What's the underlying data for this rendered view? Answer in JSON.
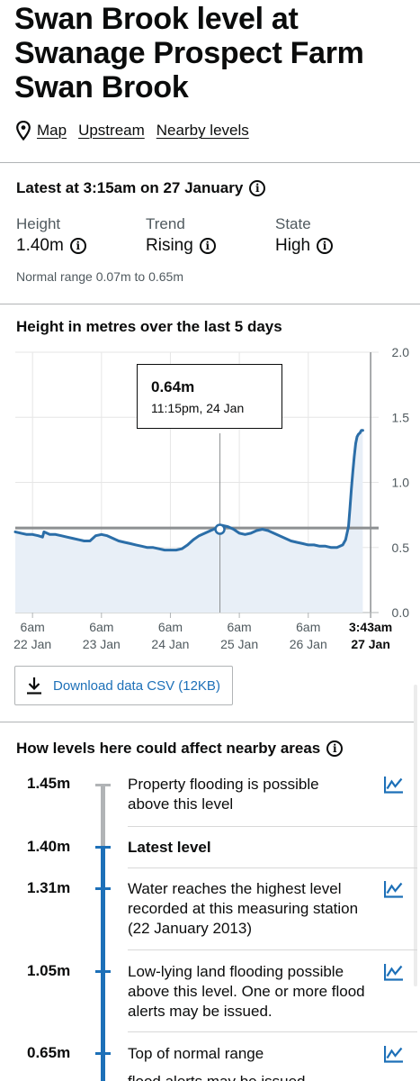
{
  "page": {
    "title_lines": [
      "Swan Brook level at",
      "Swanage Prospect Farm",
      "Swan Brook"
    ]
  },
  "links": {
    "map": "Map",
    "upstream": "Upstream",
    "nearby": "Nearby levels"
  },
  "latest": {
    "heading": "Latest at 3:15am on 27 January",
    "height": {
      "label": "Height",
      "value": "1.40m"
    },
    "trend": {
      "label": "Trend",
      "value": "Rising"
    },
    "state": {
      "label": "State",
      "value": "High"
    },
    "normal_range": "Normal range 0.07m to 0.65m"
  },
  "chart_section": {
    "heading": "Height in metres over the last 5 days",
    "download_label": "Download data CSV (12KB)"
  },
  "chart_data": {
    "type": "area",
    "title": "Height in metres over the last 5 days",
    "xlabel": "",
    "ylabel": "",
    "ylim": [
      0,
      2.0
    ],
    "yticks": [
      "0.0",
      "0.5",
      "1.0",
      "1.5",
      "2.0"
    ],
    "xticks": [
      {
        "time": "6am",
        "date": "22 Jan",
        "hours": 6
      },
      {
        "time": "6am",
        "date": "23 Jan",
        "hours": 30
      },
      {
        "time": "6am",
        "date": "24 Jan",
        "hours": 54
      },
      {
        "time": "6am",
        "date": "25 Jan",
        "hours": 78
      },
      {
        "time": "6am",
        "date": "26 Jan",
        "hours": 102
      },
      {
        "time": "3:43am",
        "date": "27 Jan",
        "hours": 123.72,
        "now": true
      }
    ],
    "x_start_hours": 6,
    "x_end_hours": 126.5,
    "reference_line": {
      "value": 0.65
    },
    "tooltip": {
      "value": "0.64m",
      "time": "11:15pm, 24 Jan",
      "hours": 71.25,
      "y": 0.64
    },
    "grid": true,
    "series": [
      {
        "x_hours": [
          0,
          2,
          4,
          6,
          8,
          9.5,
          10,
          12,
          14,
          16,
          18,
          20,
          22,
          24,
          26,
          28,
          30,
          32,
          34,
          36,
          38,
          40,
          42,
          44,
          46,
          48,
          50,
          52,
          54,
          56,
          58,
          60,
          62,
          64,
          66,
          68,
          70,
          71.25,
          72,
          74,
          76,
          78,
          80,
          82,
          84,
          86,
          88,
          90,
          92,
          94,
          96,
          98,
          100,
          102,
          104,
          106,
          108,
          110,
          112,
          114,
          115,
          116,
          116.5,
          117,
          117.5,
          118,
          118.5,
          119,
          119.5,
          120,
          120.5,
          121
        ],
        "values": [
          0.62,
          0.61,
          0.6,
          0.6,
          0.59,
          0.58,
          0.62,
          0.6,
          0.6,
          0.59,
          0.58,
          0.57,
          0.56,
          0.55,
          0.55,
          0.59,
          0.6,
          0.59,
          0.57,
          0.55,
          0.54,
          0.53,
          0.52,
          0.51,
          0.5,
          0.5,
          0.49,
          0.48,
          0.48,
          0.48,
          0.49,
          0.52,
          0.56,
          0.59,
          0.61,
          0.63,
          0.65,
          0.64,
          0.67,
          0.66,
          0.64,
          0.61,
          0.6,
          0.61,
          0.63,
          0.64,
          0.63,
          0.61,
          0.59,
          0.57,
          0.55,
          0.54,
          0.53,
          0.52,
          0.52,
          0.51,
          0.51,
          0.5,
          0.5,
          0.52,
          0.56,
          0.66,
          0.8,
          0.95,
          1.08,
          1.2,
          1.3,
          1.35,
          1.37,
          1.38,
          1.4,
          1.4
        ]
      }
    ]
  },
  "impact": {
    "heading": "How levels here could affect nearby areas",
    "rows": [
      {
        "level": "1.45m",
        "text": "Property flooding is possible above this level"
      },
      {
        "level": "1.40m",
        "text": "Latest level"
      },
      {
        "level": "1.31m",
        "text": "Water reaches the highest level recorded at this measuring station (22 January 2013)"
      },
      {
        "level": "1.05m",
        "text": "Low-lying land flooding possible above this level. One or more flood alerts may be issued."
      },
      {
        "level": "0.65m",
        "text": "Top of normal range"
      }
    ],
    "cut_off_text": "flood alerts may be issued"
  },
  "colors": {
    "text": "#0b0c0c",
    "secondary": "#505a5f",
    "link_blue": "#1d70b8",
    "series_line": "#2b6ea8",
    "area_fill": "#e8eff7",
    "reference_grey": "#8c8f91",
    "timeline_grey": "#b1b4b6"
  },
  "icons": {
    "location": "location-pin-icon",
    "info": "info-icon",
    "download": "download-icon",
    "chart": "line-chart-icon"
  }
}
